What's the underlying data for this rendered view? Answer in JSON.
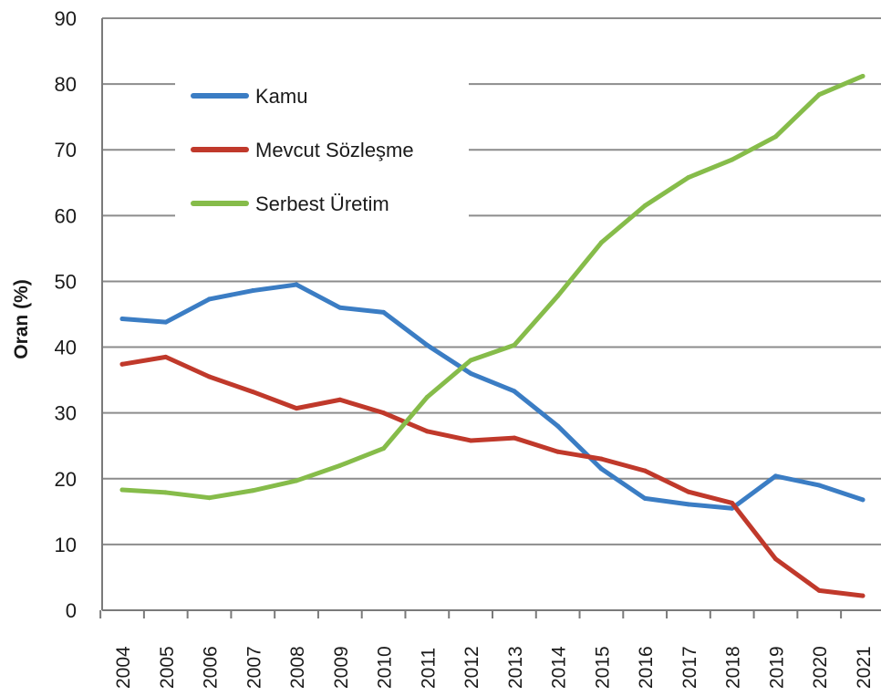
{
  "chart_data": {
    "type": "line",
    "title": "",
    "xlabel": "",
    "ylabel": "Oran (%)",
    "ylim": [
      0,
      90
    ],
    "yticks": [
      0,
      10,
      20,
      30,
      40,
      50,
      60,
      70,
      80,
      90
    ],
    "grid": true,
    "legend_position": "top-left",
    "categories": [
      "2004",
      "2005",
      "2006",
      "2007",
      "2008",
      "2009",
      "2010",
      "2011",
      "2012",
      "2013",
      "2014",
      "2015",
      "2016",
      "2017",
      "2018",
      "2019",
      "2020",
      "2021"
    ],
    "series": [
      {
        "name": "Kamu",
        "color": "#3b7dc4",
        "values": [
          44.3,
          43.8,
          47.3,
          48.6,
          49.5,
          46.0,
          45.3,
          40.3,
          36.0,
          33.3,
          28.0,
          21.5,
          17.0,
          16.1,
          15.5,
          20.4,
          19.0,
          16.8
        ]
      },
      {
        "name": "Mevcut Sözleşme",
        "color": "#c0392b",
        "values": [
          37.4,
          38.5,
          35.5,
          33.2,
          30.7,
          32.0,
          30.0,
          27.2,
          25.8,
          26.2,
          24.1,
          23.0,
          21.2,
          18.0,
          16.3,
          7.8,
          3.0,
          2.2
        ]
      },
      {
        "name": "Serbest Üretim",
        "color": "#86bc4a",
        "values": [
          18.3,
          17.9,
          17.1,
          18.2,
          19.7,
          22.0,
          24.6,
          32.4,
          38.0,
          40.3,
          47.8,
          55.9,
          61.5,
          65.8,
          68.5,
          72.0,
          78.4,
          81.2
        ]
      }
    ]
  }
}
